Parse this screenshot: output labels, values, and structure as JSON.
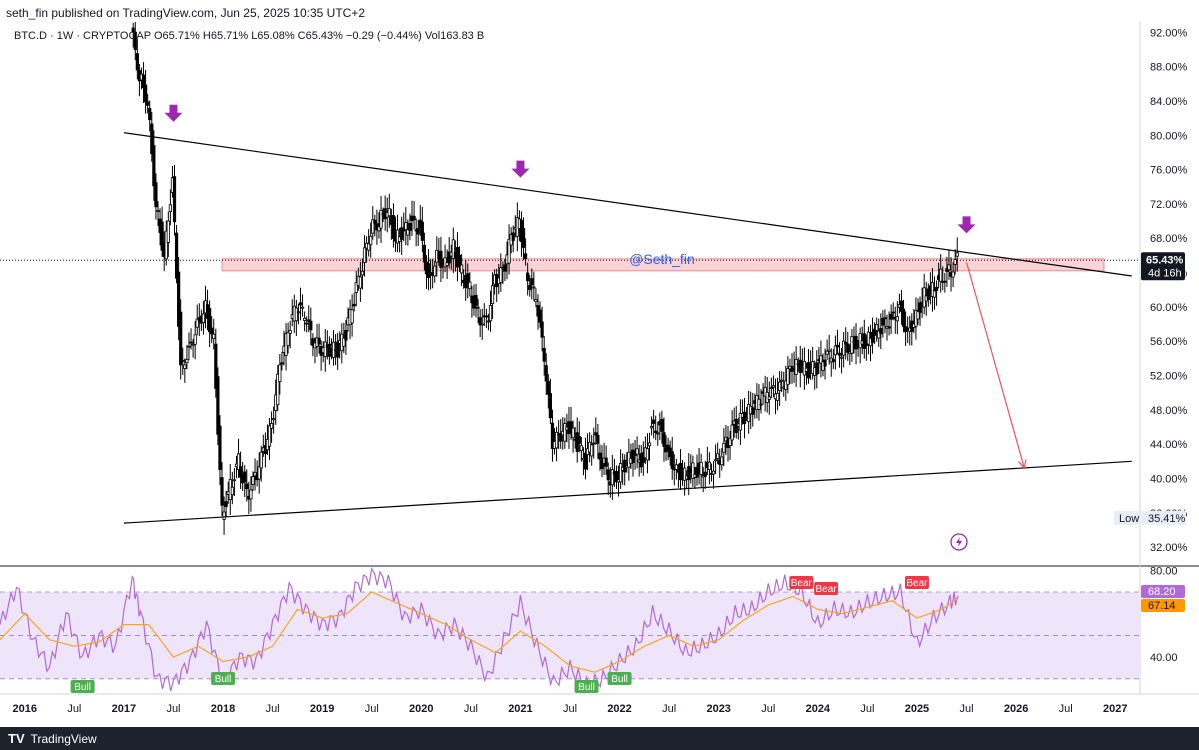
{
  "header": {
    "publish_line": "seth_fin published on TradingView.com, Jun 25, 2025 10:35 UTC+2",
    "ohlc_line": "BTC.D · 1W · CRYPTOCAP O65.71% H65.71% L65.08% C65.43% −0.29 (−0.44%) Vol163.83 B"
  },
  "watermark": "@Seth_fin",
  "footer": {
    "brand": "TradingView",
    "logo_icon": "tradingview-logo-icon"
  },
  "colors": {
    "candle": "#000000",
    "trendline": "#000000",
    "zone_fill": "#f8c9cf",
    "zone_border": "#ef5350",
    "arrow": "#9c27b0",
    "projection": "#ef5350",
    "rsi": "#b06ad6",
    "rsi_ma": "#f5a623",
    "rsi_band": "#efe5fb",
    "bull_label": "#4caf50",
    "bear_label": "#f23645",
    "price_tag": "#131722",
    "rsi_ma_tag": "#ff9800"
  },
  "chart_data": [
    {
      "type": "candlestick",
      "title": "BTC.D · 1W · CRYPTOCAP",
      "y_unit": "%",
      "ylim": [
        30.5,
        92.5
      ],
      "y_ticks": [
        "92.00%",
        "88.00%",
        "84.00%",
        "80.00%",
        "76.00%",
        "72.00%",
        "68.00%",
        "64.00%",
        "60.00%",
        "56.00%",
        "52.00%",
        "48.00%",
        "44.00%",
        "40.00%",
        "36.00%",
        "32.00%"
      ],
      "x_ticks": [
        "2016",
        "Jul",
        "2017",
        "Jul",
        "2018",
        "Jul",
        "2019",
        "Jul",
        "2020",
        "Jul",
        "2021",
        "Jul",
        "2022",
        "Jul",
        "2023",
        "Jul",
        "2024",
        "Jul",
        "2025",
        "Jul",
        "2026",
        "Jul",
        "2027"
      ],
      "x_range": [
        "2015-10",
        "2027-04"
      ],
      "close_path": [
        {
          "x": "2017-02",
          "y": 92.5
        },
        {
          "x": "2017-03",
          "y": 87
        },
        {
          "x": "2017-04",
          "y": 84
        },
        {
          "x": "2017-05",
          "y": 72
        },
        {
          "x": "2017-06",
          "y": 66
        },
        {
          "x": "2017-07",
          "y": 75
        },
        {
          "x": "2017-08",
          "y": 53
        },
        {
          "x": "2017-09",
          "y": 55
        },
        {
          "x": "2017-10",
          "y": 58
        },
        {
          "x": "2017-11",
          "y": 60
        },
        {
          "x": "2017-12",
          "y": 56
        },
        {
          "x": "2018-01",
          "y": 36
        },
        {
          "x": "2018-02",
          "y": 39
        },
        {
          "x": "2018-03",
          "y": 42
        },
        {
          "x": "2018-04",
          "y": 38
        },
        {
          "x": "2018-05",
          "y": 40
        },
        {
          "x": "2018-06",
          "y": 43
        },
        {
          "x": "2018-07",
          "y": 46
        },
        {
          "x": "2018-08",
          "y": 53
        },
        {
          "x": "2018-09",
          "y": 57
        },
        {
          "x": "2018-10",
          "y": 60
        },
        {
          "x": "2018-11",
          "y": 59
        },
        {
          "x": "2018-12",
          "y": 56
        },
        {
          "x": "2019-01",
          "y": 55
        },
        {
          "x": "2019-02",
          "y": 55
        },
        {
          "x": "2019-03",
          "y": 55
        },
        {
          "x": "2019-04",
          "y": 57
        },
        {
          "x": "2019-05",
          "y": 61
        },
        {
          "x": "2019-06",
          "y": 65
        },
        {
          "x": "2019-07",
          "y": 69
        },
        {
          "x": "2019-08",
          "y": 70
        },
        {
          "x": "2019-09",
          "y": 71.5
        },
        {
          "x": "2019-10",
          "y": 68
        },
        {
          "x": "2019-11",
          "y": 69
        },
        {
          "x": "2019-12",
          "y": 70
        },
        {
          "x": "2020-01",
          "y": 69
        },
        {
          "x": "2020-02",
          "y": 63
        },
        {
          "x": "2020-03",
          "y": 66
        },
        {
          "x": "2020-04",
          "y": 65
        },
        {
          "x": "2020-05",
          "y": 67
        },
        {
          "x": "2020-06",
          "y": 64
        },
        {
          "x": "2020-07",
          "y": 62
        },
        {
          "x": "2020-08",
          "y": 59
        },
        {
          "x": "2020-09",
          "y": 58
        },
        {
          "x": "2020-10",
          "y": 63
        },
        {
          "x": "2020-11",
          "y": 64
        },
        {
          "x": "2020-12",
          "y": 68
        },
        {
          "x": "2021-01",
          "y": 70
        },
        {
          "x": "2021-02",
          "y": 63
        },
        {
          "x": "2021-03",
          "y": 61
        },
        {
          "x": "2021-04",
          "y": 54
        },
        {
          "x": "2021-05",
          "y": 44
        },
        {
          "x": "2021-06",
          "y": 45
        },
        {
          "x": "2021-07",
          "y": 46
        },
        {
          "x": "2021-08",
          "y": 44
        },
        {
          "x": "2021-09",
          "y": 42
        },
        {
          "x": "2021-10",
          "y": 45
        },
        {
          "x": "2021-11",
          "y": 42
        },
        {
          "x": "2021-12",
          "y": 40
        },
        {
          "x": "2022-01",
          "y": 40.5
        },
        {
          "x": "2022-02",
          "y": 42
        },
        {
          "x": "2022-03",
          "y": 43
        },
        {
          "x": "2022-04",
          "y": 42
        },
        {
          "x": "2022-05",
          "y": 46
        },
        {
          "x": "2022-06",
          "y": 46
        },
        {
          "x": "2022-07",
          "y": 43
        },
        {
          "x": "2022-08",
          "y": 41
        },
        {
          "x": "2022-09",
          "y": 40.5
        },
        {
          "x": "2022-10",
          "y": 41
        },
        {
          "x": "2022-11",
          "y": 41
        },
        {
          "x": "2022-12",
          "y": 41
        },
        {
          "x": "2023-01",
          "y": 42
        },
        {
          "x": "2023-02",
          "y": 44
        },
        {
          "x": "2023-03",
          "y": 46
        },
        {
          "x": "2023-04",
          "y": 47
        },
        {
          "x": "2023-05",
          "y": 48
        },
        {
          "x": "2023-06",
          "y": 49
        },
        {
          "x": "2023-07",
          "y": 50
        },
        {
          "x": "2023-08",
          "y": 50
        },
        {
          "x": "2023-09",
          "y": 51
        },
        {
          "x": "2023-10",
          "y": 53
        },
        {
          "x": "2023-11",
          "y": 53
        },
        {
          "x": "2023-12",
          "y": 52.5
        },
        {
          "x": "2024-01",
          "y": 53
        },
        {
          "x": "2024-02",
          "y": 54
        },
        {
          "x": "2024-03",
          "y": 54.5
        },
        {
          "x": "2024-04",
          "y": 55
        },
        {
          "x": "2024-05",
          "y": 55.5
        },
        {
          "x": "2024-06",
          "y": 56
        },
        {
          "x": "2024-07",
          "y": 56
        },
        {
          "x": "2024-08",
          "y": 57
        },
        {
          "x": "2024-09",
          "y": 58
        },
        {
          "x": "2024-10",
          "y": 58.5
        },
        {
          "x": "2024-11",
          "y": 60
        },
        {
          "x": "2024-12",
          "y": 57
        },
        {
          "x": "2025-01",
          "y": 59
        },
        {
          "x": "2025-02",
          "y": 61.5
        },
        {
          "x": "2025-03",
          "y": 62
        },
        {
          "x": "2025-04",
          "y": 63.5
        },
        {
          "x": "2025-05",
          "y": 64
        },
        {
          "x": "2025-06",
          "y": 65.43
        }
      ],
      "last_price_label": "65.43%",
      "countdown_label": "4d 16h",
      "low_label": "Low",
      "low_value": "35.41%",
      "annotations": {
        "upper_trendline": [
          {
            "x": "2017-01",
            "y": 80.3
          },
          {
            "x": "2027-03",
            "y": 63.6
          }
        ],
        "lower_trendline": [
          {
            "x": "2017-01",
            "y": 34.8
          },
          {
            "x": "2027-03",
            "y": 42.0
          }
        ],
        "resistance_zone": [
          64.2,
          65.6
        ],
        "down_arrows": [
          {
            "x": "2017-07",
            "y": 82.5
          },
          {
            "x": "2021-01",
            "y": 76
          },
          {
            "x": "2025-07",
            "y": 69.5
          }
        ],
        "projection_arrow": [
          {
            "x": "2025-07",
            "y": 65.2
          },
          {
            "x": "2026-02",
            "y": 41.2
          }
        ]
      }
    },
    {
      "type": "line",
      "title": "RSI",
      "ylim": [
        23,
        82
      ],
      "y_ticks": [
        "80.00",
        "40.00"
      ],
      "bands": [
        30,
        70
      ],
      "midline": 50,
      "current_value_label": "68.20",
      "ma_value_label": "67.14",
      "series": [
        {
          "values": [
            {
              "x": "2015-10",
              "y": 55
            },
            {
              "x": "2015-12",
              "y": 72
            },
            {
              "x": "2016-02",
              "y": 48
            },
            {
              "x": "2016-04",
              "y": 35
            },
            {
              "x": "2016-06",
              "y": 60
            },
            {
              "x": "2016-08",
              "y": 40
            },
            {
              "x": "2016-10",
              "y": 50
            },
            {
              "x": "2016-12",
              "y": 45
            },
            {
              "x": "2017-02",
              "y": 76
            },
            {
              "x": "2017-03",
              "y": 60
            },
            {
              "x": "2017-05",
              "y": 30
            },
            {
              "x": "2017-07",
              "y": 28
            },
            {
              "x": "2017-09",
              "y": 38
            },
            {
              "x": "2017-11",
              "y": 55
            },
            {
              "x": "2018-01",
              "y": 28
            },
            {
              "x": "2018-03",
              "y": 40
            },
            {
              "x": "2018-05",
              "y": 38
            },
            {
              "x": "2018-07",
              "y": 55
            },
            {
              "x": "2018-09",
              "y": 72
            },
            {
              "x": "2018-11",
              "y": 62
            },
            {
              "x": "2019-01",
              "y": 55
            },
            {
              "x": "2019-03",
              "y": 58
            },
            {
              "x": "2019-05",
              "y": 72
            },
            {
              "x": "2019-07",
              "y": 78
            },
            {
              "x": "2019-09",
              "y": 75
            },
            {
              "x": "2019-11",
              "y": 58
            },
            {
              "x": "2020-01",
              "y": 62
            },
            {
              "x": "2020-03",
              "y": 50
            },
            {
              "x": "2020-05",
              "y": 55
            },
            {
              "x": "2020-07",
              "y": 45
            },
            {
              "x": "2020-09",
              "y": 30
            },
            {
              "x": "2020-11",
              "y": 48
            },
            {
              "x": "2021-01",
              "y": 65
            },
            {
              "x": "2021-03",
              "y": 45
            },
            {
              "x": "2021-05",
              "y": 28
            },
            {
              "x": "2021-07",
              "y": 35
            },
            {
              "x": "2021-09",
              "y": 27
            },
            {
              "x": "2021-11",
              "y": 30
            },
            {
              "x": "2022-01",
              "y": 38
            },
            {
              "x": "2022-03",
              "y": 45
            },
            {
              "x": "2022-05",
              "y": 60
            },
            {
              "x": "2022-07",
              "y": 52
            },
            {
              "x": "2022-09",
              "y": 42
            },
            {
              "x": "2022-11",
              "y": 45
            },
            {
              "x": "2023-01",
              "y": 50
            },
            {
              "x": "2023-03",
              "y": 60
            },
            {
              "x": "2023-05",
              "y": 62
            },
            {
              "x": "2023-07",
              "y": 70
            },
            {
              "x": "2023-09",
              "y": 74
            },
            {
              "x": "2023-11",
              "y": 70
            },
            {
              "x": "2024-01",
              "y": 55
            },
            {
              "x": "2024-03",
              "y": 62
            },
            {
              "x": "2024-05",
              "y": 60
            },
            {
              "x": "2024-07",
              "y": 65
            },
            {
              "x": "2024-09",
              "y": 68
            },
            {
              "x": "2024-11",
              "y": 70
            },
            {
              "x": "2025-01",
              "y": 46
            },
            {
              "x": "2025-03",
              "y": 58
            },
            {
              "x": "2025-05",
              "y": 65
            },
            {
              "x": "2025-06",
              "y": 68.2
            }
          ]
        },
        {
          "values": [
            {
              "x": "2015-10",
              "y": 48
            },
            {
              "x": "2016-01",
              "y": 60
            },
            {
              "x": "2016-04",
              "y": 48
            },
            {
              "x": "2016-07",
              "y": 45
            },
            {
              "x": "2016-10",
              "y": 47
            },
            {
              "x": "2017-01",
              "y": 55
            },
            {
              "x": "2017-04",
              "y": 55
            },
            {
              "x": "2017-07",
              "y": 40
            },
            {
              "x": "2017-10",
              "y": 45
            },
            {
              "x": "2018-01",
              "y": 38
            },
            {
              "x": "2018-04",
              "y": 40
            },
            {
              "x": "2018-07",
              "y": 45
            },
            {
              "x": "2018-10",
              "y": 62
            },
            {
              "x": "2019-01",
              "y": 58
            },
            {
              "x": "2019-04",
              "y": 60
            },
            {
              "x": "2019-07",
              "y": 70
            },
            {
              "x": "2019-10",
              "y": 65
            },
            {
              "x": "2020-01",
              "y": 60
            },
            {
              "x": "2020-04",
              "y": 55
            },
            {
              "x": "2020-07",
              "y": 48
            },
            {
              "x": "2020-10",
              "y": 42
            },
            {
              "x": "2021-01",
              "y": 52
            },
            {
              "x": "2021-04",
              "y": 45
            },
            {
              "x": "2021-07",
              "y": 36
            },
            {
              "x": "2021-10",
              "y": 33
            },
            {
              "x": "2022-01",
              "y": 38
            },
            {
              "x": "2022-04",
              "y": 45
            },
            {
              "x": "2022-07",
              "y": 50
            },
            {
              "x": "2022-10",
              "y": 45
            },
            {
              "x": "2023-01",
              "y": 48
            },
            {
              "x": "2023-04",
              "y": 57
            },
            {
              "x": "2023-07",
              "y": 64
            },
            {
              "x": "2023-10",
              "y": 68
            },
            {
              "x": "2024-01",
              "y": 62
            },
            {
              "x": "2024-04",
              "y": 60
            },
            {
              "x": "2024-07",
              "y": 63
            },
            {
              "x": "2024-10",
              "y": 66
            },
            {
              "x": "2025-01",
              "y": 58
            },
            {
              "x": "2025-04",
              "y": 62
            },
            {
              "x": "2025-06",
              "y": 67.14
            }
          ]
        }
      ],
      "signals": [
        {
          "label": "Bull",
          "x": "2016-08"
        },
        {
          "label": "Bull",
          "x": "2018-01"
        },
        {
          "label": "Bull",
          "x": "2021-09"
        },
        {
          "label": "Bull",
          "x": "2022-01"
        },
        {
          "label": "Bear",
          "x": "2023-11"
        },
        {
          "label": "Bear",
          "x": "2024-02"
        },
        {
          "label": "Bear",
          "x": "2025-01"
        }
      ]
    }
  ]
}
